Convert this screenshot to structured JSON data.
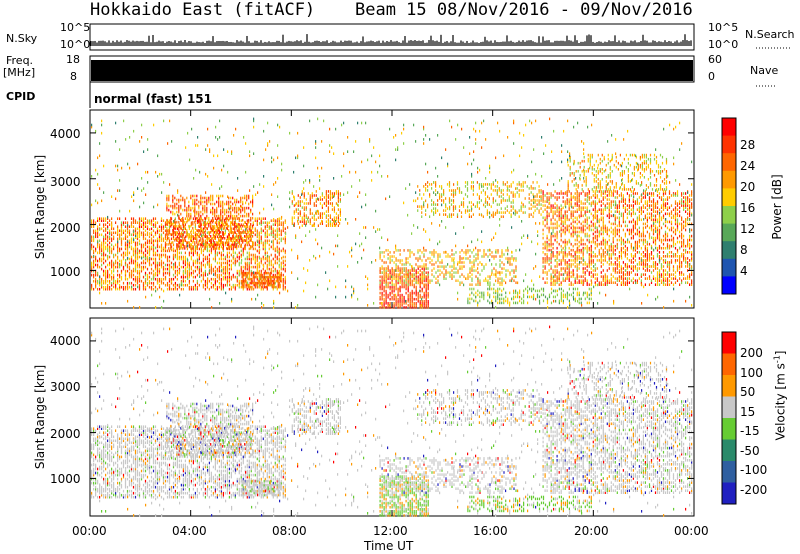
{
  "header": {
    "title": "Hokkaido East (fitACF)",
    "beam_info": "Beam 15  08/Nov/2016 - 09/Nov/2016"
  },
  "panels": {
    "nsky_label": "N.Sky",
    "nsky_ticks": [
      "10^5",
      "10^0"
    ],
    "nsearch_label": "N.Search",
    "freq_label": "Freq.",
    "freq_unit": "[MHz]",
    "freq_ticks": [
      "18",
      "8"
    ],
    "nave_label": "Nave",
    "nave_ticks": [
      "60",
      "0"
    ],
    "cpid_label": "CPID",
    "cpid_value": "normal (fast) 151"
  },
  "chart_data": [
    {
      "type": "heatmap",
      "name": "power",
      "ylabel": "Slant Range [km]",
      "y_ticks": [
        "4000",
        "3000",
        "2000",
        "1000"
      ],
      "colorbar_label": "Power [dB]",
      "colorbar_ticks": [
        "28",
        "24",
        "20",
        "16",
        "12",
        "8",
        "4"
      ],
      "colorscale": [
        "#0000ff",
        "#1f55b0",
        "#2f7f6f",
        "#58a858",
        "#8ecf4a",
        "#ffcc00",
        "#ff9900",
        "#ff6600",
        "#ff3300",
        "#ff0000"
      ],
      "zlim": [
        0,
        30
      ],
      "xlim_hours": [
        0,
        24
      ],
      "ylim_km": [
        180,
        4500
      ]
    },
    {
      "type": "heatmap",
      "name": "velocity",
      "ylabel": "Slant Range [km]",
      "y_ticks": [
        "4000",
        "3000",
        "2000",
        "1000"
      ],
      "colorbar_label": "Velocity [m s",
      "colorbar_label_sup": "-1",
      "colorbar_label_end": "]",
      "colorbar_ticks": [
        "200",
        "100",
        "50",
        "15",
        "-15",
        "-50",
        "-100",
        "-200"
      ],
      "colorscale": [
        "#2020c0",
        "#2f5fa0",
        "#2a8a6a",
        "#66cc33",
        "#c8c8c8",
        "#ff9900",
        "#ff6600",
        "#ff0000"
      ],
      "xlim_hours": [
        0,
        24
      ],
      "ylim_km": [
        180,
        4500
      ],
      "x_ticks": [
        "00:00",
        "04:00",
        "08:00",
        "12:00",
        "16:00",
        "20:00",
        "00:00"
      ],
      "xlabel": "Time UT"
    }
  ]
}
